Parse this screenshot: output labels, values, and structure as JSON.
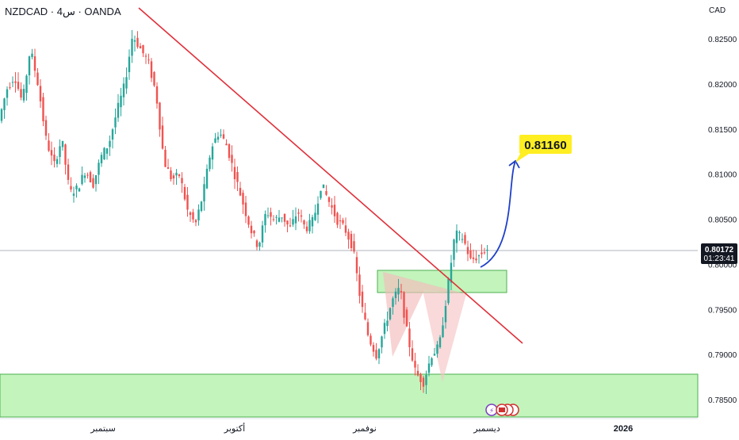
{
  "header": {
    "symbol_line": "NZDCAD · 4س · OANDA",
    "currency": "CAD"
  },
  "price_axis": {
    "ticks": [
      "0.82500",
      "0.82000",
      "0.81500",
      "0.81000",
      "0.80500",
      "0.80000",
      "0.79500",
      "0.79000",
      "0.78500"
    ],
    "current_price": "0.80172",
    "countdown": "01:23:41"
  },
  "time_axis": {
    "labels": [
      "سبتمبر",
      "أكتوبر",
      "نوفمبر",
      "ديسمبر",
      "2026"
    ]
  },
  "colors": {
    "up": "#26a69a",
    "down": "#ef5350",
    "trendline": "#e0303a",
    "zone_fill": "#a8f0a0",
    "zone_stroke": "#4caf50",
    "pattern_left": "#f4bcbc",
    "pattern_right": "#f6c4c4",
    "arrow": "#1e40c8",
    "target_bg": "#ffee22",
    "axis_badge": "#131722"
  },
  "chart_data": {
    "type": "candlestick",
    "symbol": "NZDCAD",
    "timeframe": "4h",
    "source": "OANDA",
    "y_range": [
      0.7832,
      0.8294
    ],
    "x_labels": [
      "سبتمبر",
      "أكتوبر",
      "نوفمبر",
      "ديسمبر",
      "2026"
    ],
    "series": [
      {
        "name": "price_path",
        "values": [
          0.816,
          0.8195,
          0.821,
          0.818,
          0.824,
          0.82,
          0.814,
          0.811,
          0.814,
          0.808,
          0.8085,
          0.8105,
          0.809,
          0.812,
          0.8135,
          0.817,
          0.82,
          0.8255,
          0.824,
          0.8225,
          0.819,
          0.8115,
          0.8095,
          0.81,
          0.806,
          0.8045,
          0.808,
          0.813,
          0.8148,
          0.8132,
          0.81,
          0.807,
          0.804,
          0.802,
          0.806,
          0.805,
          0.8055,
          0.804,
          0.806,
          0.804,
          0.805,
          0.809,
          0.807,
          0.805,
          0.804,
          0.802,
          0.796,
          0.792,
          0.79,
          0.793,
          0.796,
          0.7975,
          0.792,
          0.788,
          0.787,
          0.79,
          0.791,
          0.797,
          0.8035,
          0.803,
          0.8005,
          0.801,
          0.8018
        ]
      }
    ],
    "current_price": 0.80172,
    "trendline": {
      "from": {
        "bar": 8,
        "price": 0.829
      },
      "to": {
        "bar": 60,
        "price": 0.7915
      }
    },
    "zones": [
      {
        "name": "support",
        "from": 0.7833,
        "to": 0.7882
      },
      {
        "name": "retest",
        "from": 0.7972,
        "to": 0.7995
      }
    ],
    "projection_target": 0.8116,
    "target_label": "0.81160",
    "pattern": "double bottom"
  }
}
